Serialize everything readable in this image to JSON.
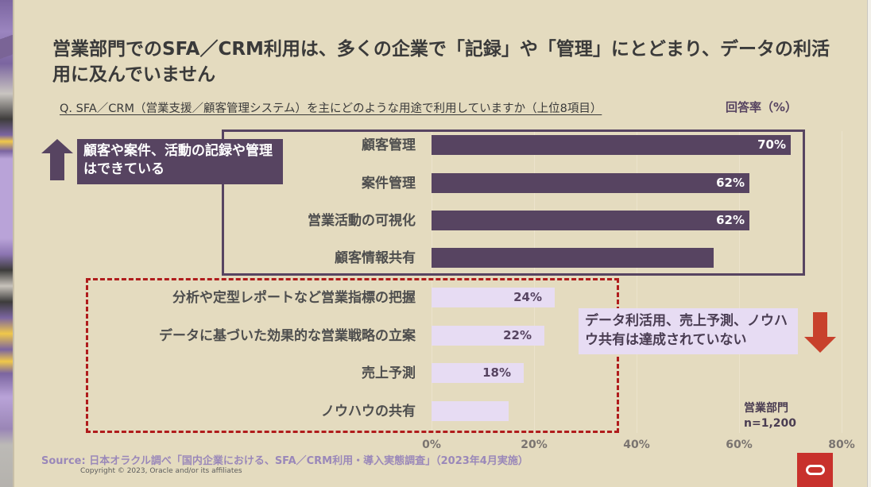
{
  "slide": {
    "title": "営業部門でのSFA／CRM利用は、多くの企業で「記録」や「管理」にとどまり、データの利活用に及んでいません",
    "question": "Q.  SFA／CRM（営業支援／顧客管理システム）を主にどのような用途で利用していますか（上位8項目）",
    "unit_label": "回答率（%）",
    "callout_positive": "顧客や案件、活動の記録や管理はできている",
    "callout_negative": "データ利活用、売上予測、ノウハウ共有は達成されていない",
    "sample_dept": "営業部門",
    "sample_n": "n=1,200",
    "source": "Source: 日本オラクル調べ「国内企業における、SFA／CRM利用・導入実態調査」（2023年4月実施）",
    "copyright": "Copyright © 2023, Oracle and/or its affiliates",
    "icons": {
      "up": "arrow-up-icon",
      "down": "arrow-down-icon",
      "logo": "oracle-logo"
    },
    "colors": {
      "background": "#e4dbbf",
      "dark_bar": "#574461",
      "light_bar": "#e7dcf3",
      "dashed_border": "#b01c1c",
      "down_arrow": "#c8412c",
      "logo_bg": "#c8312c",
      "source_text": "#9a88b9"
    }
  },
  "chart_data": {
    "type": "bar",
    "orientation": "horizontal",
    "title": "Q. SFA／CRM（営業支援／顧客管理システム）を主にどのような用途で利用していますか（上位8項目）",
    "xlabel": "回答率（%）",
    "ylabel": "",
    "xlim": [
      0,
      80
    ],
    "xticks": [
      "0%",
      "20%",
      "40%",
      "60%",
      "80%"
    ],
    "grid": true,
    "categories": [
      "顧客管理",
      "案件管理",
      "営業活動の可視化",
      "顧客情報共有",
      "分析や定型レポートなど営業指標の把握",
      "データに基づいた効果的な営業戦略の立案",
      "売上予測",
      "ノウハウの共有"
    ],
    "values": [
      70,
      62,
      62,
      55,
      24,
      22,
      18,
      15
    ],
    "labels": [
      "70%",
      "62%",
      "62%",
      "",
      "24%",
      "22%",
      "18%",
      ""
    ],
    "groups": [
      "high",
      "high",
      "high",
      "high",
      "low",
      "low",
      "low",
      "low"
    ],
    "annotations": [
      "顧客や案件、活動の記録や管理はできている",
      "データ利活用、売上予測、ノウハウ共有は達成されていない",
      "営業部門 n=1,200"
    ]
  }
}
